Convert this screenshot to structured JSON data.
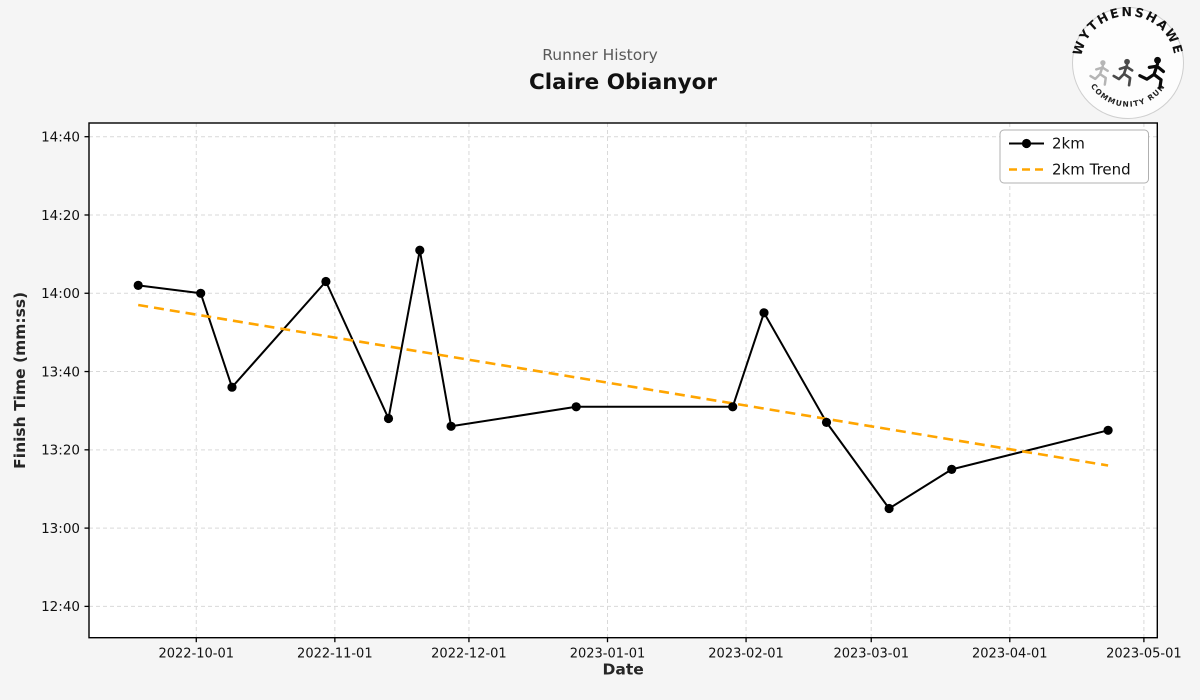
{
  "header": {
    "suptitle": "Runner History",
    "title": "Claire Obianyor"
  },
  "logo": {
    "top_text": "WYTHENSHAWE",
    "bottom_text": "COMMUNITY RUN"
  },
  "chart_data": {
    "type": "line",
    "title": "Runner History",
    "subtitle": "Claire Obianyor",
    "xlabel": "Date",
    "ylabel": "Finish Time (mm:ss)",
    "grid": true,
    "legend_position": "upper right",
    "x_ticks": [
      "2022-10-01",
      "2022-11-01",
      "2022-12-01",
      "2023-01-01",
      "2023-02-01",
      "2023-03-01",
      "2023-04-01",
      "2023-05-01"
    ],
    "y_ticks": [
      "14:40",
      "14:20",
      "14:00",
      "13:40",
      "13:20",
      "13:00",
      "12:40"
    ],
    "xlim": [
      "2022-09-07",
      "2023-05-04"
    ],
    "ylim_seconds": [
      752,
      883.5
    ],
    "colors": {
      "figure_background": "#f5f5f5",
      "plot_background": "#ffffff",
      "grid": "#d9d9d9",
      "spine": "#000000",
      "series_2km": "#000000",
      "series_trend": "#FFA500",
      "legend_border": "#b0b0b0"
    },
    "series": [
      {
        "name": "2km",
        "color": "#000000",
        "line_style": "solid",
        "marker": "circle",
        "points": [
          [
            "2022-09-18",
            "14:02"
          ],
          [
            "2022-10-02",
            "14:00"
          ],
          [
            "2022-10-09",
            "13:36"
          ],
          [
            "2022-10-30",
            "14:03"
          ],
          [
            "2022-11-13",
            "13:28"
          ],
          [
            "2022-11-20",
            "14:11"
          ],
          [
            "2022-11-27",
            "13:26"
          ],
          [
            "2022-12-25",
            "13:31"
          ],
          [
            "2023-01-29",
            "13:31"
          ],
          [
            "2023-02-05",
            "13:55"
          ],
          [
            "2023-02-19",
            "13:27"
          ],
          [
            "2023-03-05",
            "13:05"
          ],
          [
            "2023-03-19",
            "13:15"
          ],
          [
            "2023-04-23",
            "13:25"
          ]
        ]
      },
      {
        "name": "2km Trend",
        "color": "#FFA500",
        "line_style": "dashed",
        "marker": "none",
        "points": [
          [
            "2022-09-18",
            "13:57"
          ],
          [
            "2023-04-23",
            "13:16"
          ]
        ]
      }
    ]
  }
}
